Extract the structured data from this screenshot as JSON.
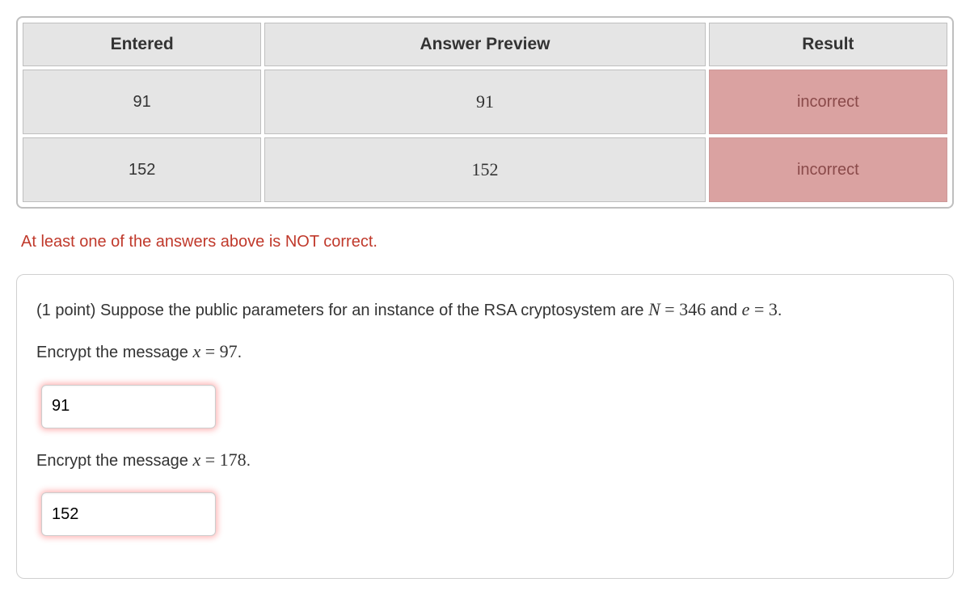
{
  "table": {
    "headers": {
      "entered": "Entered",
      "preview": "Answer Preview",
      "result": "Result"
    },
    "rows": [
      {
        "entered": "91",
        "preview": "91",
        "result": "incorrect",
        "result_state": "incorrect"
      },
      {
        "entered": "152",
        "preview": "152",
        "result": "incorrect",
        "result_state": "incorrect"
      }
    ],
    "colors": {
      "header_bg": "#e5e5e5",
      "cell_bg": "#e5e5e5",
      "incorrect_bg": "#daa2a1",
      "incorrect_text": "#8a4a4a",
      "border": "#bfbfbf"
    }
  },
  "feedback": "At least one of the answers above is NOT correct.",
  "problem": {
    "points_label": "(1 point) ",
    "intro_prefix": "Suppose the public parameters for an instance of the RSA cryptosystem are ",
    "N_var": "N",
    "eq": " = ",
    "N_val": "346",
    "and_text": " and ",
    "e_var": "e",
    "e_val": "3",
    "period": ".",
    "q1_prefix": "Encrypt the message ",
    "x_var": "x",
    "q1_val": "97",
    "q2_val": "178",
    "input1_value": "91",
    "input2_value": "152"
  }
}
